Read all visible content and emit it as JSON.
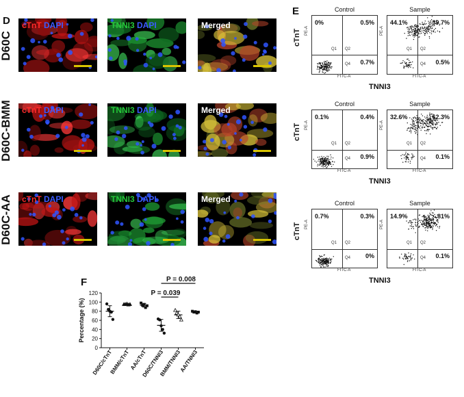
{
  "panel_d": {
    "label": "D",
    "rows": [
      {
        "name": "D60C",
        "ch1": "cTnT",
        "ch2": "DAPI",
        "ch3": "TNNI3",
        "ch4": "DAPI",
        "merged": "Merged"
      },
      {
        "name": "D60C-BMM",
        "ch1": "cTnT",
        "ch2": "DAPI",
        "ch3": "TNNI3",
        "ch4": "DAPI",
        "merged": "Merged"
      },
      {
        "name": "D60C-AA",
        "ch1": "cTnT",
        "ch2": "DAPI",
        "ch3": "TNNI3",
        "ch4": "DAPI",
        "merged": "Merged"
      }
    ]
  },
  "panel_e": {
    "label": "E",
    "y_axis_label": "cTnT",
    "x_axis_label": "TNNI3",
    "rows": [
      {
        "control": {
          "title": "Control",
          "q1": "0%",
          "q2": "0.5%",
          "q4": "0.7%"
        },
        "sample": {
          "title": "Sample",
          "q1": "44.1%",
          "q2": "39.7%",
          "q4": "0.5%"
        }
      },
      {
        "control": {
          "title": "Control",
          "q1": "0.1%",
          "q2": "0.4%",
          "q4": "0.9%"
        },
        "sample": {
          "title": "Sample",
          "q1": "32.6%",
          "q2": "62.3%",
          "q4": "0.1%"
        }
      },
      {
        "control": {
          "title": "Control",
          "q1": "0.7%",
          "q2": "0.3%",
          "q4": "0%"
        },
        "sample": {
          "title": "Sample",
          "q1": "14.9%",
          "q2": "81%",
          "q4": "0.1%"
        }
      }
    ],
    "quadrant_labels": {
      "q1": "Q1",
      "q2": "Q2",
      "q4": "Q4"
    },
    "facs_axes": {
      "x": "FITC-A",
      "y": "PE-A"
    }
  },
  "panel_f": {
    "label": "F",
    "chart_data": {
      "type": "scatter",
      "ylabel": "Percentage (%)",
      "ylim": [
        0,
        120
      ],
      "yticks": [
        "0",
        "20",
        "40",
        "60",
        "80",
        "100",
        "120"
      ],
      "categories": [
        "D60C/cTnT",
        "BMM/cTnT",
        "AA/cTnT",
        "D60C/TNNI3",
        "BMM/TNNI3",
        "AA/TNNI3"
      ],
      "markers": [
        "circle",
        "triangle",
        "square",
        "circle",
        "triangle",
        "square"
      ],
      "points": [
        [
          96,
          84,
          80,
          78,
          62
        ],
        [
          95,
          95,
          96,
          94,
          95
        ],
        [
          98,
          93,
          95,
          88,
          92
        ],
        [
          63,
          61,
          48,
          40,
          32
        ],
        [
          82,
          76,
          72,
          68,
          61
        ],
        [
          80,
          78,
          79,
          76,
          78
        ]
      ],
      "means": [
        80,
        95,
        93,
        49,
        72,
        78
      ],
      "errors": [
        12,
        1,
        4,
        13,
        8,
        2
      ],
      "annotations": [
        {
          "text": "P = 0.008",
          "from": "D60C/TNNI3",
          "to": "AA/TNNI3"
        },
        {
          "text": "P = 0.039",
          "from": "D60C/TNNI3",
          "to": "BMM/TNNI3"
        }
      ]
    }
  }
}
